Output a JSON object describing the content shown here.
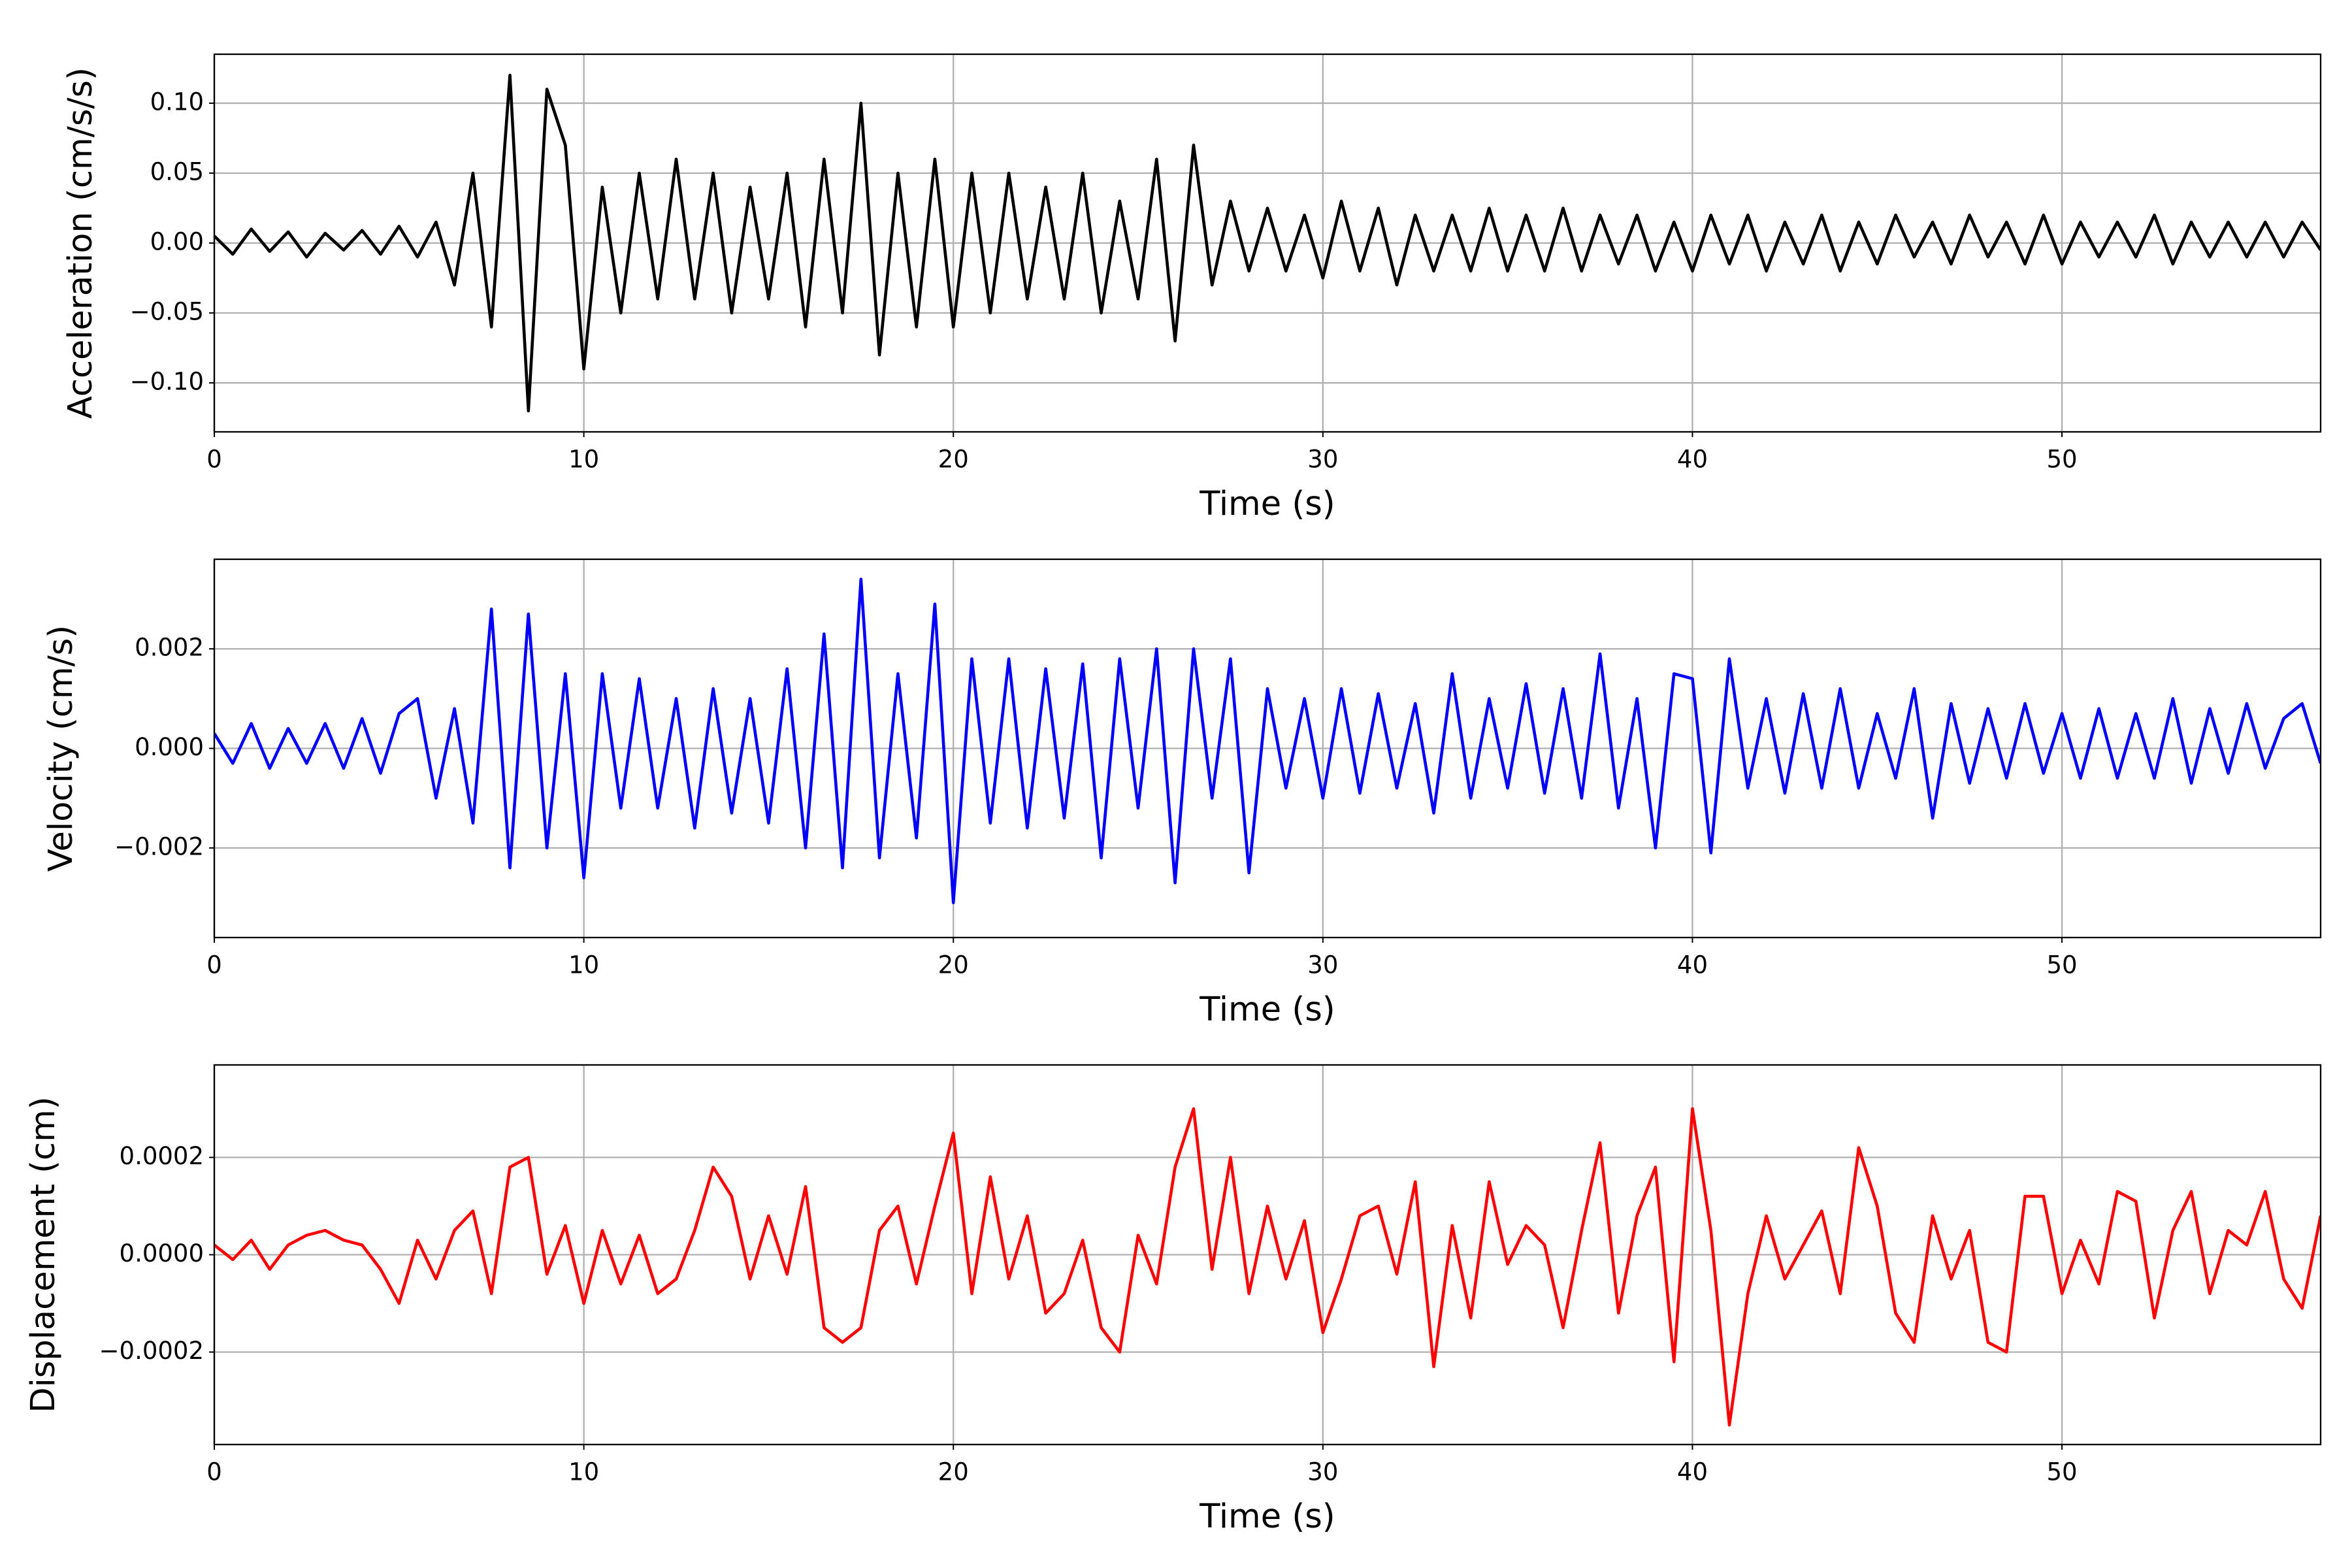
{
  "chart_data": [
    {
      "type": "line",
      "xlabel": "Time (s)",
      "ylabel": "Acceleration (cm/s/s)",
      "x": [
        0,
        0.5,
        1,
        1.5,
        2,
        2.5,
        3,
        3.5,
        4,
        4.5,
        5,
        5.5,
        6,
        6.5,
        7,
        7.5,
        8,
        8.5,
        9,
        9.5,
        10,
        10.5,
        11,
        11.5,
        12,
        12.5,
        13,
        13.5,
        14,
        14.5,
        15,
        15.5,
        16,
        16.5,
        17,
        17.5,
        18,
        18.5,
        19,
        19.5,
        20,
        20.5,
        21,
        21.5,
        22,
        22.5,
        23,
        23.5,
        24,
        24.5,
        25,
        25.5,
        26,
        26.5,
        27,
        27.5,
        28,
        28.5,
        29,
        29.5,
        30,
        30.5,
        31,
        31.5,
        32,
        32.5,
        33,
        33.5,
        34,
        34.5,
        35,
        35.5,
        36,
        36.5,
        37,
        37.5,
        38,
        38.5,
        39,
        39.5,
        40,
        40.5,
        41,
        41.5,
        42,
        42.5,
        43,
        43.5,
        44,
        44.5,
        45,
        45.5,
        46,
        46.5,
        47,
        47.5,
        48,
        48.5,
        49,
        49.5,
        50,
        50.5,
        51,
        51.5,
        52,
        52.5,
        53,
        53.5,
        54,
        54.5,
        55,
        55.5,
        56,
        56.5,
        57
      ],
      "series": [
        {
          "name": "acceleration",
          "color": "#000000",
          "values": [
            0.005,
            -0.008,
            0.01,
            -0.006,
            0.008,
            -0.01,
            0.007,
            -0.005,
            0.009,
            -0.008,
            0.012,
            -0.01,
            0.015,
            -0.03,
            0.05,
            -0.06,
            0.12,
            -0.12,
            0.11,
            0.07,
            -0.09,
            0.04,
            -0.05,
            0.05,
            -0.04,
            0.06,
            -0.04,
            0.05,
            -0.05,
            0.04,
            -0.04,
            0.05,
            -0.06,
            0.06,
            -0.05,
            0.1,
            -0.08,
            0.05,
            -0.06,
            0.06,
            -0.06,
            0.05,
            -0.05,
            0.05,
            -0.04,
            0.04,
            -0.04,
            0.05,
            -0.05,
            0.03,
            -0.04,
            0.06,
            -0.07,
            0.07,
            -0.03,
            0.03,
            -0.02,
            0.025,
            -0.02,
            0.02,
            -0.025,
            0.03,
            -0.02,
            0.025,
            -0.03,
            0.02,
            -0.02,
            0.02,
            -0.02,
            0.025,
            -0.02,
            0.02,
            -0.02,
            0.025,
            -0.02,
            0.02,
            -0.015,
            0.02,
            -0.02,
            0.015,
            -0.02,
            0.02,
            -0.015,
            0.02,
            -0.02,
            0.015,
            -0.015,
            0.02,
            -0.02,
            0.015,
            -0.015,
            0.02,
            -0.01,
            0.015,
            -0.015,
            0.02,
            -0.01,
            0.015,
            -0.015,
            0.02,
            -0.015,
            0.015,
            -0.01,
            0.015,
            -0.01,
            0.02,
            -0.015,
            0.015,
            -0.01,
            0.015,
            -0.01,
            0.015,
            -0.01,
            0.015,
            -0.005
          ]
        }
      ],
      "xlim": [
        0,
        57
      ],
      "xticks": [
        0,
        10,
        20,
        30,
        40,
        50
      ],
      "ylim": [
        -0.135,
        0.135
      ],
      "yticks": [
        {
          "value": -0.1,
          "label": "−0.10"
        },
        {
          "value": -0.05,
          "label": "−0.05"
        },
        {
          "value": 0,
          "label": "0.00"
        },
        {
          "value": 0.05,
          "label": "0.05"
        },
        {
          "value": 0.1,
          "label": "0.10"
        }
      ],
      "grid": true
    },
    {
      "type": "line",
      "xlabel": "Time (s)",
      "ylabel": "Velocity (cm/s)",
      "x": [
        0,
        0.5,
        1,
        1.5,
        2,
        2.5,
        3,
        3.5,
        4,
        4.5,
        5,
        5.5,
        6,
        6.5,
        7,
        7.5,
        8,
        8.5,
        9,
        9.5,
        10,
        10.5,
        11,
        11.5,
        12,
        12.5,
        13,
        13.5,
        14,
        14.5,
        15,
        15.5,
        16,
        16.5,
        17,
        17.5,
        18,
        18.5,
        19,
        19.5,
        20,
        20.5,
        21,
        21.5,
        22,
        22.5,
        23,
        23.5,
        24,
        24.5,
        25,
        25.5,
        26,
        26.5,
        27,
        27.5,
        28,
        28.5,
        29,
        29.5,
        30,
        30.5,
        31,
        31.5,
        32,
        32.5,
        33,
        33.5,
        34,
        34.5,
        35,
        35.5,
        36,
        36.5,
        37,
        37.5,
        38,
        38.5,
        39,
        39.5,
        40,
        40.5,
        41,
        41.5,
        42,
        42.5,
        43,
        43.5,
        44,
        44.5,
        45,
        45.5,
        46,
        46.5,
        47,
        47.5,
        48,
        48.5,
        49,
        49.5,
        50,
        50.5,
        51,
        51.5,
        52,
        52.5,
        53,
        53.5,
        54,
        54.5,
        55,
        55.5,
        56,
        56.5,
        57
      ],
      "series": [
        {
          "name": "velocity",
          "color": "#0000ff",
          "values": [
            0.0003,
            -0.0003,
            0.0005,
            -0.0004,
            0.0004,
            -0.0003,
            0.0005,
            -0.0004,
            0.0006,
            -0.0005,
            0.0007,
            0.001,
            -0.001,
            0.0008,
            -0.0015,
            0.0028,
            -0.0024,
            0.0027,
            -0.002,
            0.0015,
            -0.0026,
            0.0015,
            -0.0012,
            0.0014,
            -0.0012,
            0.001,
            -0.0016,
            0.0012,
            -0.0013,
            0.001,
            -0.0015,
            0.0016,
            -0.002,
            0.0023,
            -0.0024,
            0.0034,
            -0.0022,
            0.0015,
            -0.0018,
            0.0029,
            -0.0031,
            0.0018,
            -0.0015,
            0.0018,
            -0.0016,
            0.0016,
            -0.0014,
            0.0017,
            -0.0022,
            0.0018,
            -0.0012,
            0.002,
            -0.0027,
            0.002,
            -0.001,
            0.0018,
            -0.0025,
            0.0012,
            -0.0008,
            0.001,
            -0.001,
            0.0012,
            -0.0009,
            0.0011,
            -0.0008,
            0.0009,
            -0.0013,
            0.0015,
            -0.001,
            0.001,
            -0.0008,
            0.0013,
            -0.0009,
            0.0012,
            -0.001,
            0.0019,
            -0.0012,
            0.001,
            -0.002,
            0.0015,
            0.0014,
            -0.0021,
            0.0018,
            -0.0008,
            0.001,
            -0.0009,
            0.0011,
            -0.0008,
            0.0012,
            -0.0008,
            0.0007,
            -0.0006,
            0.0012,
            -0.0014,
            0.0009,
            -0.0007,
            0.0008,
            -0.0006,
            0.0009,
            -0.0005,
            0.0007,
            -0.0006,
            0.0008,
            -0.0006,
            0.0007,
            -0.0006,
            0.001,
            -0.0007,
            0.0008,
            -0.0005,
            0.0009,
            -0.0004,
            0.0006,
            0.0009,
            -0.0003
          ]
        }
      ],
      "xlim": [
        0,
        57
      ],
      "xticks": [
        0,
        10,
        20,
        30,
        40,
        50
      ],
      "ylim": [
        -0.0038,
        0.0038
      ],
      "yticks": [
        {
          "value": -0.002,
          "label": "−0.002"
        },
        {
          "value": 0,
          "label": "0.000"
        },
        0.002
      ],
      "grid": true
    },
    {
      "type": "line",
      "xlabel": "Time (s)",
      "ylabel": "Displacement (cm)",
      "x": [
        0,
        0.5,
        1,
        1.5,
        2,
        2.5,
        3,
        3.5,
        4,
        4.5,
        5,
        5.5,
        6,
        6.5,
        7,
        7.5,
        8,
        8.5,
        9,
        9.5,
        10,
        10.5,
        11,
        11.5,
        12,
        12.5,
        13,
        13.5,
        14,
        14.5,
        15,
        15.5,
        16,
        16.5,
        17,
        17.5,
        18,
        18.5,
        19,
        19.5,
        20,
        20.5,
        21,
        21.5,
        22,
        22.5,
        23,
        23.5,
        24,
        24.5,
        25,
        25.5,
        26,
        26.5,
        27,
        27.5,
        28,
        28.5,
        29,
        29.5,
        30,
        30.5,
        31,
        31.5,
        32,
        32.5,
        33,
        33.5,
        34,
        34.5,
        35,
        35.5,
        36,
        36.5,
        37,
        37.5,
        38,
        38.5,
        39,
        39.5,
        40,
        40.5,
        41,
        41.5,
        42,
        42.5,
        43,
        43.5,
        44,
        44.5,
        45,
        45.5,
        46,
        46.5,
        47,
        47.5,
        48,
        48.5,
        49,
        49.5,
        50,
        50.5,
        51,
        51.5,
        52,
        52.5,
        53,
        53.5,
        54,
        54.5,
        55,
        55.5,
        56,
        56.5,
        57
      ],
      "series": [
        {
          "name": "displacement",
          "color": "#ff0000",
          "values": [
            2e-05,
            -1e-05,
            3e-05,
            -3e-05,
            2e-05,
            4e-05,
            5e-05,
            3e-05,
            2e-05,
            -3e-05,
            -0.0001,
            3e-05,
            -5e-05,
            5e-05,
            9e-05,
            -8e-05,
            0.00018,
            0.0002,
            -4e-05,
            6e-05,
            -0.0001,
            5e-05,
            -6e-05,
            4e-05,
            -8e-05,
            -5e-05,
            5e-05,
            0.00018,
            0.00012,
            -5e-05,
            8e-05,
            -4e-05,
            0.00014,
            -0.00015,
            -0.00018,
            -0.00015,
            5e-05,
            0.0001,
            -6e-05,
            0.0001,
            0.00025,
            -8e-05,
            0.00016,
            -5e-05,
            8e-05,
            -0.00012,
            -8e-05,
            3e-05,
            -0.00015,
            -0.0002,
            4e-05,
            -6e-05,
            0.00018,
            0.0003,
            -3e-05,
            0.0002,
            -8e-05,
            0.0001,
            -5e-05,
            7e-05,
            -0.00016,
            -5e-05,
            8e-05,
            0.0001,
            -4e-05,
            0.00015,
            -0.00023,
            6e-05,
            -0.00013,
            0.00015,
            -2e-05,
            6e-05,
            2e-05,
            -0.00015,
            5e-05,
            0.00023,
            -0.00012,
            8e-05,
            0.00018,
            -0.00022,
            0.0003,
            5e-05,
            -0.00035,
            -8e-05,
            8e-05,
            -5e-05,
            2e-05,
            9e-05,
            -8e-05,
            0.00022,
            0.0001,
            -0.00012,
            -0.00018,
            8e-05,
            -5e-05,
            5e-05,
            -0.00018,
            -0.0002,
            0.00012,
            0.00012,
            -8e-05,
            3e-05,
            -6e-05,
            0.00013,
            0.00011,
            -0.00013,
            5e-05,
            0.00013,
            -8e-05,
            5e-05,
            2e-05,
            0.00013,
            -5e-05,
            -0.00011,
            8e-05
          ]
        }
      ],
      "xlim": [
        0,
        57
      ],
      "xticks": [
        0,
        10,
        20,
        30,
        40,
        50
      ],
      "ylim": [
        -0.00039,
        0.00039
      ],
      "yticks": [
        {
          "value": -0.0002,
          "label": "−0.0002"
        },
        {
          "value": 0,
          "label": "0.0000"
        },
        {
          "value": 0.0002,
          "label": "0.0002"
        }
      ],
      "grid": true
    }
  ]
}
